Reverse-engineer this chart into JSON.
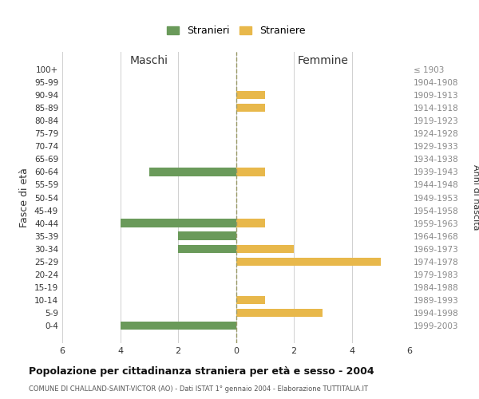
{
  "age_groups": [
    "100+",
    "95-99",
    "90-94",
    "85-89",
    "80-84",
    "75-79",
    "70-74",
    "65-69",
    "60-64",
    "55-59",
    "50-54",
    "45-49",
    "40-44",
    "35-39",
    "30-34",
    "25-29",
    "20-24",
    "15-19",
    "10-14",
    "5-9",
    "0-4"
  ],
  "birth_years": [
    "≤ 1903",
    "1904-1908",
    "1909-1913",
    "1914-1918",
    "1919-1923",
    "1924-1928",
    "1929-1933",
    "1934-1938",
    "1939-1943",
    "1944-1948",
    "1949-1953",
    "1954-1958",
    "1959-1963",
    "1964-1968",
    "1969-1973",
    "1974-1978",
    "1979-1983",
    "1984-1988",
    "1989-1993",
    "1994-1998",
    "1999-2003"
  ],
  "males": [
    0,
    0,
    0,
    0,
    0,
    0,
    0,
    0,
    3,
    0,
    0,
    0,
    4,
    2,
    2,
    0,
    0,
    0,
    0,
    0,
    4
  ],
  "females": [
    0,
    0,
    1,
    1,
    0,
    0,
    0,
    0,
    1,
    0,
    0,
    0,
    1,
    0,
    2,
    5,
    0,
    0,
    1,
    3,
    0
  ],
  "male_color": "#6a9a5a",
  "female_color": "#e8b84b",
  "title": "Popolazione per cittadinanza straniera per età e sesso - 2004",
  "subtitle": "COMUNE DI CHALLAND-SAINT-VICTOR (AO) - Dati ISTAT 1° gennaio 2004 - Elaborazione TUTTITALIA.IT",
  "ylabel_left": "Fasce di età",
  "ylabel_right": "Anni di nascita",
  "xlabel_left": "Maschi",
  "xlabel_right": "Femmine",
  "legend_males": "Stranieri",
  "legend_females": "Straniere",
  "xlim": 6,
  "background_color": "#ffffff",
  "grid_color": "#d0d0d0"
}
